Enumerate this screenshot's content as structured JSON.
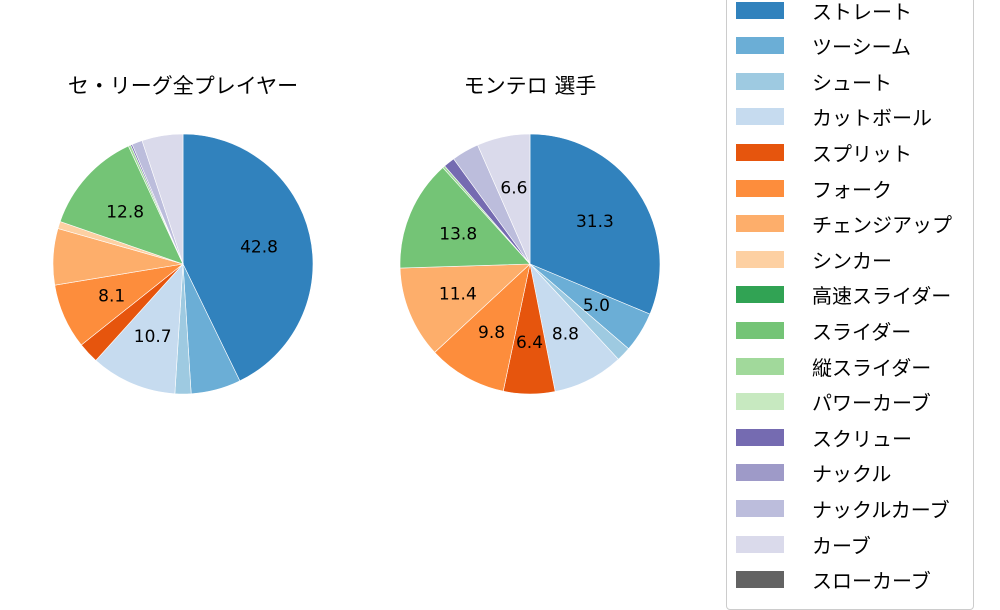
{
  "chart_data": [
    {
      "type": "pie",
      "title": "セ・リーグ全プレイヤー",
      "start_angle": 90,
      "direction": "clockwise",
      "categories": [
        "ストレート",
        "ツーシーム",
        "シュート",
        "カットボール",
        "スプリット",
        "フォーク",
        "チェンジアップ",
        "シンカー",
        "スライダー",
        "縦スライダー",
        "スクリュー",
        "ナックルカーブ",
        "カーブ"
      ],
      "values": [
        42.8,
        6.2,
        2.0,
        10.7,
        2.6,
        8.1,
        7.0,
        0.9,
        12.8,
        0.3,
        0.2,
        1.3,
        5.1
      ],
      "labels_shown": [
        "42.8",
        "",
        "",
        "10.7",
        "",
        "8.1",
        "",
        "",
        "12.8",
        "",
        "",
        "",
        ""
      ]
    },
    {
      "type": "pie",
      "title": "モンテロ  選手",
      "start_angle": 90,
      "direction": "clockwise",
      "categories": [
        "ストレート",
        "ツーシーム",
        "シュート",
        "カットボール",
        "スプリット",
        "フォーク",
        "チェンジアップ",
        "スライダー",
        "縦スライダー",
        "スクリュー",
        "ナックルカーブ",
        "カーブ"
      ],
      "values": [
        31.3,
        5.0,
        1.8,
        8.8,
        6.4,
        9.8,
        11.4,
        13.8,
        0.3,
        1.4,
        3.4,
        6.6
      ],
      "labels_shown": [
        "31.3",
        "5.0",
        "",
        "8.8",
        "6.4",
        "9.8",
        "11.4",
        "13.8",
        "",
        "",
        "",
        "6.6"
      ]
    }
  ],
  "titles": {
    "left": "セ・リーグ全プレイヤー",
    "right": "モンテロ  選手"
  },
  "colors": {
    "ストレート": "#3182bd",
    "ツーシーム": "#6baed6",
    "シュート": "#9ecae1",
    "カットボール": "#c6dbef",
    "スプリット": "#e6550d",
    "フォーク": "#fd8d3c",
    "チェンジアップ": "#fdae6b",
    "シンカー": "#fdd0a2",
    "高速スライダー": "#31a354",
    "スライダー": "#74c476",
    "縦スライダー": "#a1d99b",
    "パワーカーブ": "#c7e9c0",
    "スクリュー": "#756bb1",
    "ナックル": "#9e9ac8",
    "ナックルカーブ": "#bcbddc",
    "カーブ": "#dadaeb",
    "スローカーブ": "#636363"
  },
  "legend": {
    "items": [
      {
        "label": "ストレート",
        "color": "#3182bd"
      },
      {
        "label": "ツーシーム",
        "color": "#6baed6"
      },
      {
        "label": "シュート",
        "color": "#9ecae1"
      },
      {
        "label": "カットボール",
        "color": "#c6dbef"
      },
      {
        "label": "スプリット",
        "color": "#e6550d"
      },
      {
        "label": "フォーク",
        "color": "#fd8d3c"
      },
      {
        "label": "チェンジアップ",
        "color": "#fdae6b"
      },
      {
        "label": "シンカー",
        "color": "#fdd0a2"
      },
      {
        "label": "高速スライダー",
        "color": "#31a354"
      },
      {
        "label": "スライダー",
        "color": "#74c476"
      },
      {
        "label": "縦スライダー",
        "color": "#a1d99b"
      },
      {
        "label": "パワーカーブ",
        "color": "#c7e9c0"
      },
      {
        "label": "スクリュー",
        "color": "#756bb1"
      },
      {
        "label": "ナックル",
        "color": "#9e9ac8"
      },
      {
        "label": "ナックルカーブ",
        "color": "#bcbddc"
      },
      {
        "label": "カーブ",
        "color": "#dadaeb"
      },
      {
        "label": "スローカーブ",
        "color": "#636363"
      }
    ]
  }
}
